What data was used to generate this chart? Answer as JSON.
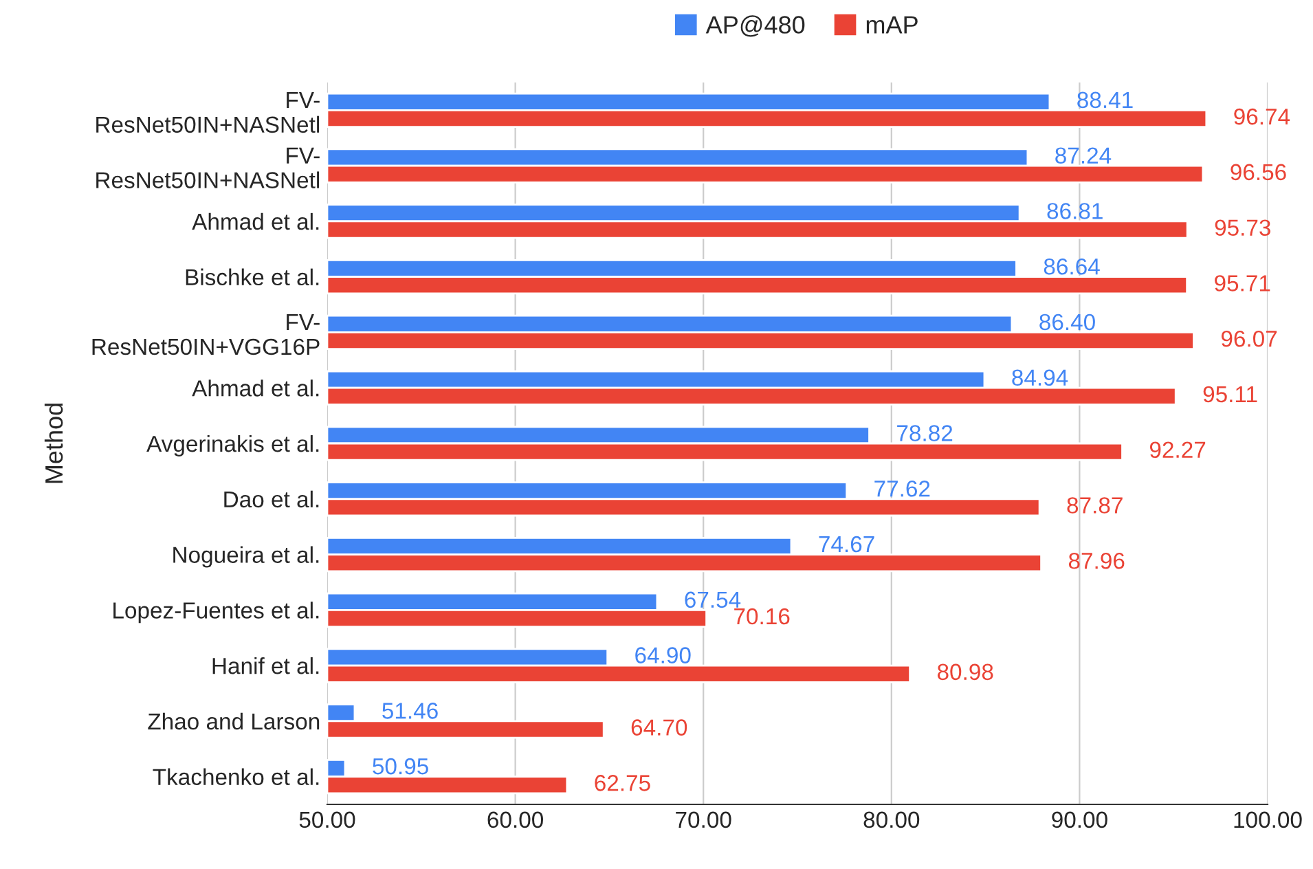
{
  "chart_data": {
    "type": "bar",
    "orientation": "horizontal",
    "ylabel": "Method",
    "categories": [
      "FV-\nResNet50IN+NASNetl",
      "FV-\nResNet50IN+NASNetl",
      "Ahmad et al.",
      "Bischke et al.",
      "FV-\nResNet50IN+VGG16P",
      "Ahmad et al.",
      "Avgerinakis et al.",
      "Dao et al.",
      "Nogueira et al.",
      "Lopez-Fuentes et al.",
      "Hanif et al.",
      "Zhao and Larson",
      "Tkachenko et al."
    ],
    "series": [
      {
        "name": "AP@480",
        "color": "#4285f4",
        "values": [
          88.41,
          87.24,
          86.81,
          86.64,
          86.4,
          84.94,
          78.82,
          77.62,
          74.67,
          67.54,
          64.9,
          51.46,
          50.95
        ],
        "value_labels": [
          "88.41",
          "87.24",
          "86.81",
          "86.64",
          "86.40",
          "84.94",
          "78.82",
          "77.62",
          "74.67",
          "67.54",
          "64.90",
          "51.46",
          "50.95"
        ]
      },
      {
        "name": "mAP",
        "color": "#ea4335",
        "values": [
          96.74,
          96.56,
          95.73,
          95.71,
          96.07,
          95.11,
          92.27,
          87.87,
          87.96,
          70.16,
          80.98,
          64.7,
          62.75
        ],
        "value_labels": [
          "96.74",
          "96.56",
          "95.73",
          "95.71",
          "96.07",
          "95.11",
          "92.27",
          "87.87",
          "87.96",
          "70.16",
          "80.98",
          "64.70",
          "62.75"
        ]
      }
    ],
    "xlim": [
      50,
      100
    ],
    "xticks": [
      {
        "value": 50,
        "label": "50.00"
      },
      {
        "value": 60,
        "label": "60.00"
      },
      {
        "value": 70,
        "label": "70.00"
      },
      {
        "value": 80,
        "label": "80.00"
      },
      {
        "value": 90,
        "label": "90.00"
      },
      {
        "value": 100,
        "label": "100.00"
      }
    ],
    "grid": "x",
    "legend": "top"
  }
}
